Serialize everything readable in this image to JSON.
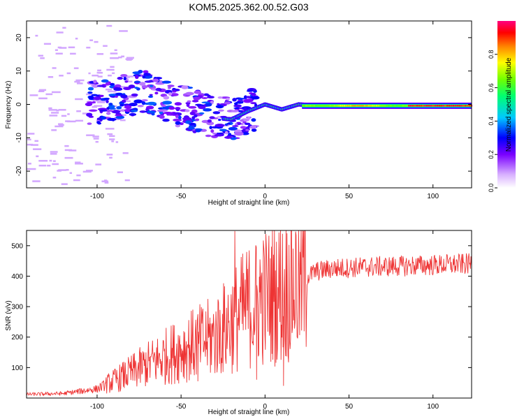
{
  "title": "KOM5.2025.362.00.52.G03",
  "chart_data": [
    {
      "type": "heatmap",
      "name": "spectrogram",
      "xlabel": "Height of straight line (km)",
      "ylabel": "Frequency (Hz)",
      "xlim": [
        -142,
        123
      ],
      "ylim": [
        -25,
        25
      ],
      "xticks": [
        -100,
        -50,
        0,
        50,
        100
      ],
      "yticks": [
        -20,
        -10,
        0,
        10,
        20
      ],
      "colorbar": {
        "label": "Normalized spectral amplitude",
        "range": [
          0,
          1
        ],
        "ticks": [
          0.0,
          0.2,
          0.4,
          0.6,
          0.8
        ],
        "colors": [
          "#ffffff",
          "#cc99ff",
          "#8000ff",
          "#0000ff",
          "#00c0ff",
          "#00ff80",
          "#40ff00",
          "#c0ff00",
          "#ffff00",
          "#ff8000",
          "#ff0000",
          "#ff0080"
        ]
      },
      "ridge": [
        {
          "x": -100,
          "f": 0.5
        },
        {
          "x": -80,
          "f": 3.0
        },
        {
          "x": -70,
          "f": 4.0
        },
        {
          "x": -60,
          "f": 1.0
        },
        {
          "x": -45,
          "f": -1.0
        },
        {
          "x": -30,
          "f": -4.0
        },
        {
          "x": -20,
          "f": -4.5
        },
        {
          "x": -10,
          "f": -2.0
        },
        {
          "x": 0,
          "f": 0.0
        },
        {
          "x": 10,
          "f": -1.5
        },
        {
          "x": 20,
          "f": 0.0
        },
        {
          "x": 30,
          "f": -0.3
        },
        {
          "x": 123,
          "f": -0.5
        }
      ]
    },
    {
      "type": "line",
      "name": "snr",
      "xlabel": "Height of straight line (km)",
      "ylabel": "SNR (v/v)",
      "xlim": [
        -142,
        123
      ],
      "ylim": [
        0,
        550
      ],
      "xticks": [
        -100,
        -50,
        0,
        50,
        100
      ],
      "yticks": [
        100,
        200,
        300,
        400,
        500
      ],
      "color": "#ee3333",
      "trend": [
        {
          "x": -142,
          "y": 12
        },
        {
          "x": -120,
          "y": 15
        },
        {
          "x": -100,
          "y": 30
        },
        {
          "x": -85,
          "y": 70
        },
        {
          "x": -70,
          "y": 110
        },
        {
          "x": -50,
          "y": 160
        },
        {
          "x": -30,
          "y": 200
        },
        {
          "x": -20,
          "y": 250
        },
        {
          "x": -10,
          "y": 300
        },
        {
          "x": 0,
          "y": 330
        },
        {
          "x": 10,
          "y": 350
        },
        {
          "x": 20,
          "y": 380
        },
        {
          "x": 30,
          "y": 415
        },
        {
          "x": 40,
          "y": 425
        },
        {
          "x": 60,
          "y": 430
        },
        {
          "x": 123,
          "y": 440
        }
      ],
      "spikes": [
        {
          "x": -18,
          "y": 548
        },
        {
          "x": 11,
          "y": 40
        },
        {
          "x": -5,
          "y": 60
        },
        {
          "x": -40,
          "y": 55
        },
        {
          "x": -3,
          "y": 455
        },
        {
          "x": 9,
          "y": 450
        }
      ]
    }
  ]
}
